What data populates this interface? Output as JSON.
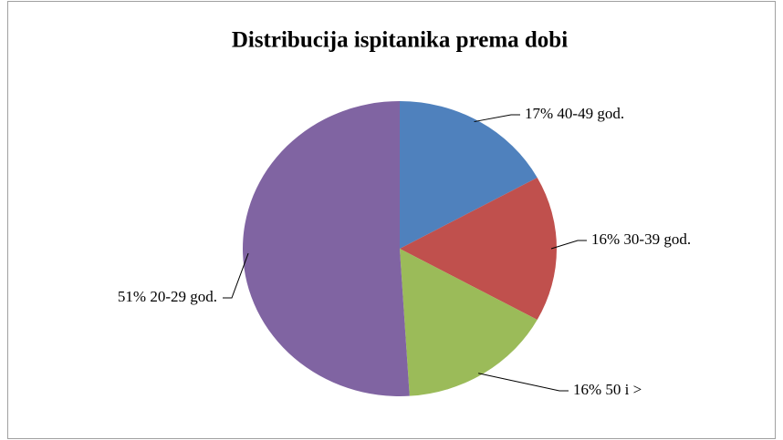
{
  "chart_data": {
    "type": "pie",
    "title": "Distribucija ispitanika prema dobi",
    "categories": [
      "40-49 god.",
      "30-39 god.",
      "50 i >",
      "20-29 god."
    ],
    "values": [
      17,
      16,
      16,
      51
    ],
    "value_labels": [
      "17%",
      "16%",
      "16%",
      "51%"
    ],
    "colors": [
      "#4f81bd",
      "#c0504d",
      "#9bbb59",
      "#8064a2"
    ]
  }
}
